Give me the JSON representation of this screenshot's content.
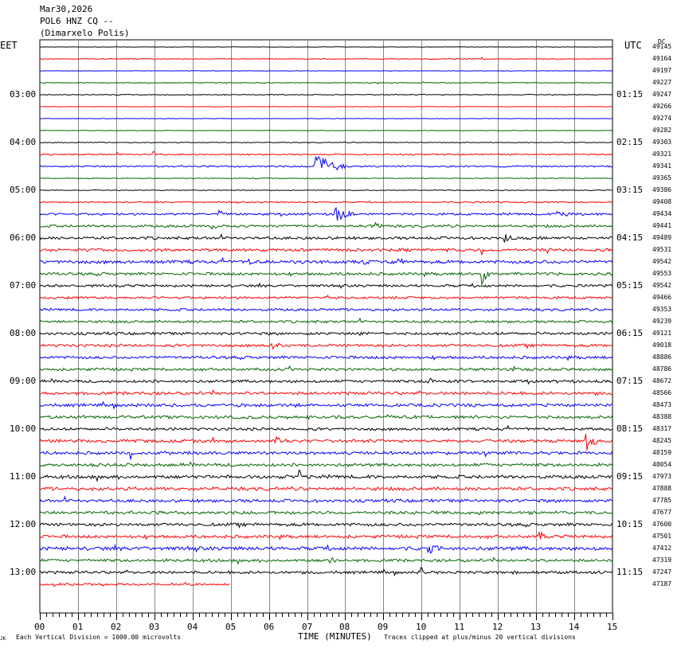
{
  "header": {
    "date": "Mar30,2026",
    "station": "POL6 HNZ CQ --",
    "location": "(Dimarxelo Polis)"
  },
  "axis": {
    "left_tz": "EET",
    "right_tz": "UTC",
    "dc_label": "DC",
    "xlabel": "TIME (MINUTES)",
    "xticks": [
      "00",
      "01",
      "02",
      "03",
      "04",
      "05",
      "06",
      "07",
      "08",
      "09",
      "10",
      "11",
      "12",
      "13",
      "14",
      "15"
    ]
  },
  "footer": {
    "left_note": "Each Vertical Division = 1000.00 microvolts",
    "right_note": "Traces clipped at plus/minus 20 vertical divisions",
    "mark": "JK"
  },
  "colors": {
    "trace_cycle": [
      "#000000",
      "#ff0000",
      "#0000ff",
      "#006600"
    ],
    "grid": "#888888"
  },
  "chart_data": {
    "type": "line",
    "title": "POL6 HNZ CQ --",
    "xlabel": "TIME (MINUTES)",
    "xlim": [
      0,
      15
    ],
    "left_hour_labels": [
      "03:00",
      "04:00",
      "05:00",
      "06:00",
      "07:00",
      "08:00",
      "09:00",
      "10:00",
      "11:00",
      "12:00",
      "13:00"
    ],
    "right_hour_labels": [
      "01:15",
      "02:15",
      "03:15",
      "04:15",
      "05:15",
      "06:15",
      "07:15",
      "08:15",
      "09:15",
      "10:15",
      "11:15"
    ],
    "dc_offsets": [
      49145,
      49164,
      49197,
      49227,
      49247,
      49266,
      49274,
      49282,
      49303,
      49321,
      49341,
      49365,
      49386,
      49408,
      49434,
      49441,
      49489,
      49531,
      49542,
      49553,
      49542,
      49466,
      49353,
      49239,
      49121,
      49018,
      48886,
      48786,
      48672,
      48566,
      48473,
      48388,
      48317,
      48245,
      48159,
      48054,
      47973,
      47888,
      47785,
      47677,
      47600,
      47501,
      47412,
      47319,
      47247,
      47187
    ],
    "noise_level": [
      0.3,
      0.6,
      0.3,
      0.6,
      0.6,
      0.3,
      0.3,
      0.3,
      0.6,
      1.0,
      1.2,
      0.6,
      0.6,
      1.0,
      1.6,
      1.8,
      2.0,
      2.2,
      2.4,
      2.0,
      1.8,
      1.8,
      1.8,
      1.8,
      2.0,
      2.0,
      2.0,
      2.0,
      2.0,
      2.2,
      2.2,
      2.2,
      2.0,
      2.2,
      2.2,
      2.2,
      2.4,
      2.4,
      2.2,
      2.2,
      2.2,
      2.2,
      2.6,
      2.0,
      2.0,
      1.6
    ],
    "last_trace_end_minute": 5.0,
    "events": [
      {
        "trace": 1,
        "minute": 11.6,
        "amp": 4,
        "dur": 0.1
      },
      {
        "trace": 9,
        "minute": 3.0,
        "amp": 5,
        "dur": 0.15
      },
      {
        "trace": 10,
        "minute": 7.2,
        "amp": 26,
        "dur": 0.9
      },
      {
        "trace": 14,
        "minute": 7.75,
        "amp": 22,
        "dur": 0.5
      },
      {
        "trace": 14,
        "minute": 4.7,
        "amp": 4,
        "dur": 0.4
      },
      {
        "trace": 14,
        "minute": 13.5,
        "amp": 4,
        "dur": 1.2
      },
      {
        "trace": 15,
        "minute": 4.5,
        "amp": 5,
        "dur": 0.3
      },
      {
        "trace": 15,
        "minute": 8.8,
        "amp": 5,
        "dur": 0.3
      },
      {
        "trace": 16,
        "minute": 12.2,
        "amp": 6,
        "dur": 0.3
      },
      {
        "trace": 17,
        "minute": 13.3,
        "amp": 7,
        "dur": 0.1
      },
      {
        "trace": 17,
        "minute": 11.6,
        "amp": 9,
        "dur": 0.1
      },
      {
        "trace": 18,
        "minute": 5.5,
        "amp": 9,
        "dur": 0.1
      },
      {
        "trace": 18,
        "minute": 9.4,
        "amp": 10,
        "dur": 0.2
      },
      {
        "trace": 19,
        "minute": 11.6,
        "amp": 22,
        "dur": 0.2
      },
      {
        "trace": 24,
        "minute": 8.4,
        "amp": 6,
        "dur": 0.2
      },
      {
        "trace": 25,
        "minute": 6.1,
        "amp": 7,
        "dur": 0.3
      },
      {
        "trace": 27,
        "minute": 12.4,
        "amp": 6,
        "dur": 0.2
      },
      {
        "trace": 28,
        "minute": 10.2,
        "amp": 5,
        "dur": 0.3
      },
      {
        "trace": 33,
        "minute": 14.3,
        "amp": 24,
        "dur": 0.4
      },
      {
        "trace": 33,
        "minute": 6.2,
        "amp": 6,
        "dur": 0.3
      },
      {
        "trace": 34,
        "minute": 2.4,
        "amp": 8,
        "dur": 0.1
      },
      {
        "trace": 36,
        "minute": 6.8,
        "amp": 8,
        "dur": 0.3
      },
      {
        "trace": 41,
        "minute": 13.1,
        "amp": 10,
        "dur": 0.2
      },
      {
        "trace": 42,
        "minute": 10.2,
        "amp": 7,
        "dur": 0.4
      },
      {
        "trace": 43,
        "minute": 7.6,
        "amp": 9,
        "dur": 0.2
      },
      {
        "trace": 44,
        "minute": 10.0,
        "amp": 14,
        "dur": 0.1
      }
    ]
  }
}
